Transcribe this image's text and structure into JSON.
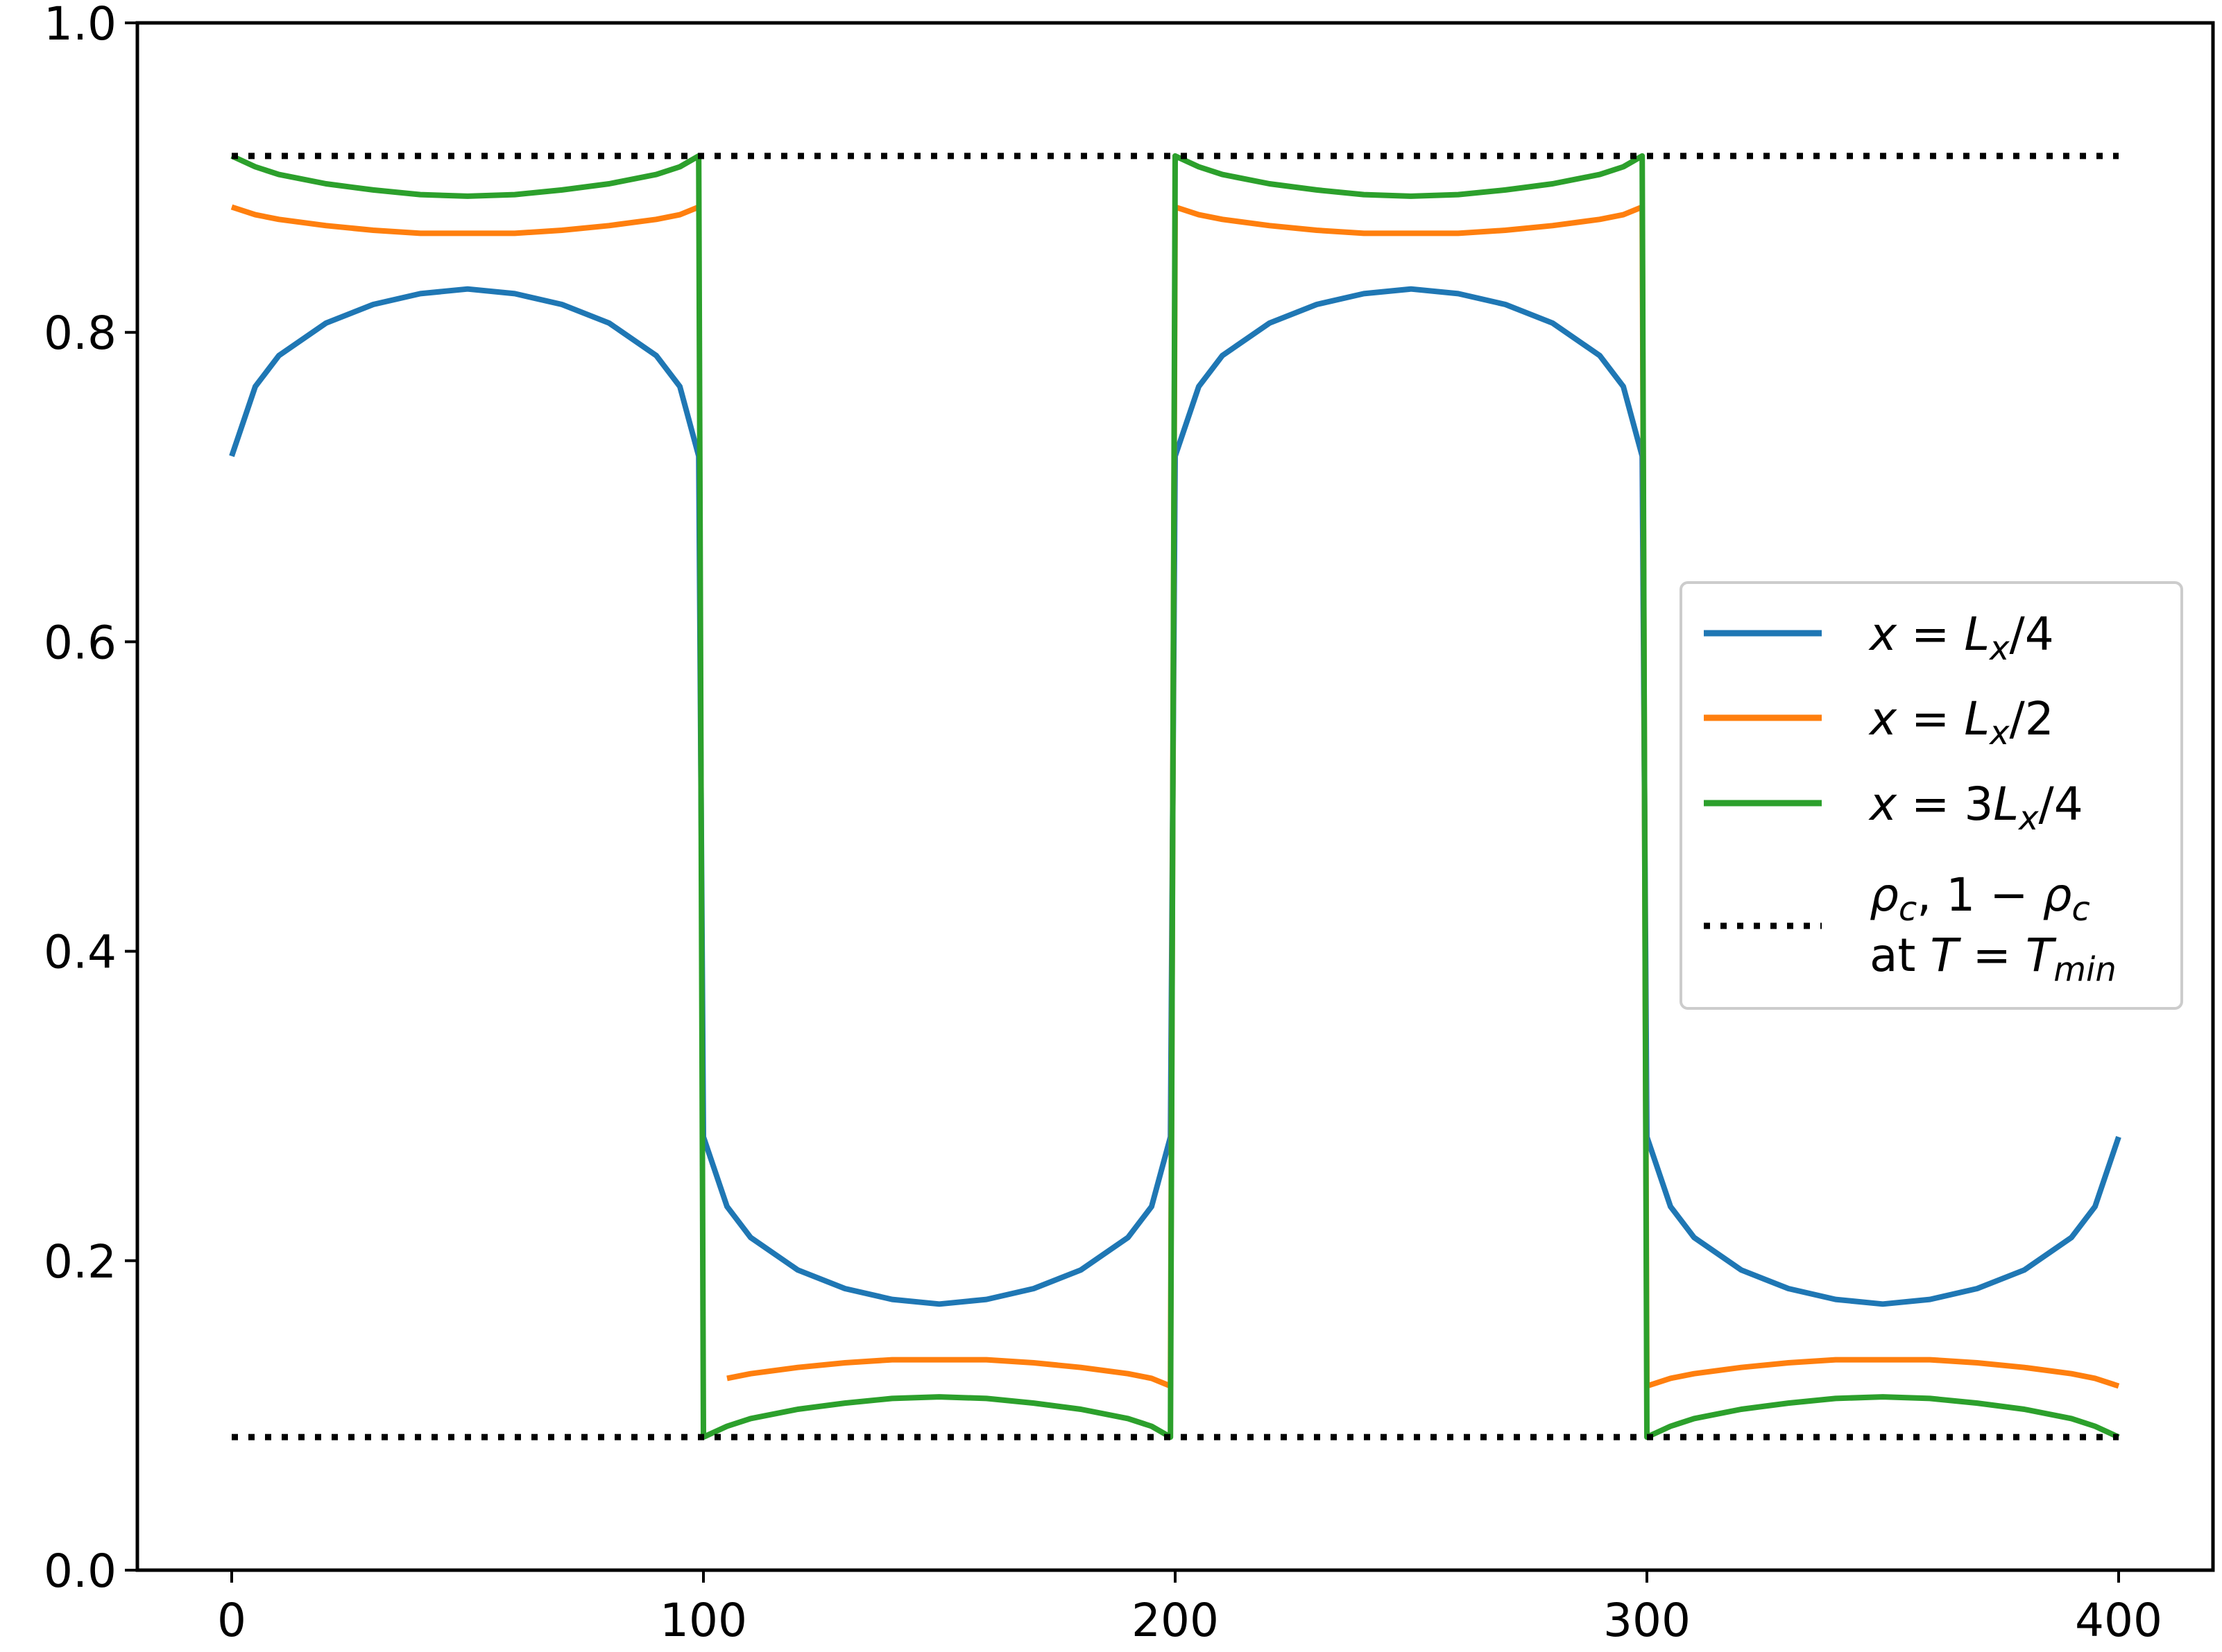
{
  "chart_data": {
    "type": "line",
    "title": "",
    "xlabel": "",
    "ylabel": "",
    "xlim": [
      -20,
      420
    ],
    "ylim": [
      0.0,
      1.0
    ],
    "grid": false,
    "legend_position": "center-right",
    "x_ticks": [
      "0",
      "100",
      "200",
      "300",
      "400"
    ],
    "y_ticks": [
      "0.0",
      "0.2",
      "0.4",
      "0.6",
      "0.8",
      "1.0"
    ],
    "x": [
      0,
      5,
      10,
      20,
      30,
      40,
      50,
      60,
      70,
      80,
      90,
      95,
      99,
      100,
      105,
      110,
      120,
      130,
      140,
      150,
      160,
      170,
      180,
      190,
      195,
      199,
      200,
      205,
      210,
      220,
      230,
      240,
      250,
      260,
      270,
      280,
      290,
      295,
      299,
      300,
      305,
      310,
      320,
      330,
      340,
      350,
      360,
      370,
      380,
      390,
      395,
      400
    ],
    "series": [
      {
        "name": "x = Lx/4",
        "color": "#1f77b4",
        "values": [
          0.72,
          0.765,
          0.785,
          0.806,
          0.818,
          0.825,
          0.828,
          0.825,
          0.818,
          0.806,
          0.785,
          0.765,
          0.72,
          0.28,
          0.235,
          0.215,
          0.194,
          0.182,
          0.175,
          0.172,
          0.175,
          0.182,
          0.194,
          0.215,
          0.235,
          0.28,
          0.72,
          0.765,
          0.785,
          0.806,
          0.818,
          0.825,
          0.828,
          0.825,
          0.818,
          0.806,
          0.785,
          0.765,
          0.72,
          0.28,
          0.235,
          0.215,
          0.194,
          0.182,
          0.175,
          0.172,
          0.175,
          0.182,
          0.194,
          0.215,
          0.235,
          0.28
        ]
      },
      {
        "name": "x = Lx/2",
        "color": "#ff7f0e",
        "values": [
          0.881,
          0.876,
          0.873,
          0.869,
          0.866,
          0.864,
          0.864,
          0.864,
          0.866,
          0.869,
          0.873,
          0.876,
          0.881,
          null,
          0.124,
          0.127,
          0.131,
          0.134,
          0.136,
          0.136,
          0.136,
          0.134,
          0.131,
          0.127,
          0.124,
          0.119,
          0.881,
          0.876,
          0.873,
          0.869,
          0.866,
          0.864,
          0.864,
          0.864,
          0.866,
          0.869,
          0.873,
          0.876,
          0.881,
          0.119,
          0.124,
          0.127,
          0.131,
          0.134,
          0.136,
          0.136,
          0.136,
          0.134,
          0.131,
          0.127,
          0.124,
          0.119
        ]
      },
      {
        "name": "x = 3Lx/4",
        "color": "#2ca02c",
        "values": [
          0.914,
          0.907,
          0.902,
          0.896,
          0.892,
          0.889,
          0.888,
          0.889,
          0.892,
          0.896,
          0.902,
          0.907,
          0.914,
          0.086,
          0.093,
          0.098,
          0.104,
          0.108,
          0.111,
          0.112,
          0.111,
          0.108,
          0.104,
          0.098,
          0.093,
          0.086,
          0.914,
          0.907,
          0.902,
          0.896,
          0.892,
          0.889,
          0.888,
          0.889,
          0.892,
          0.896,
          0.902,
          0.907,
          0.914,
          0.086,
          0.093,
          0.098,
          0.104,
          0.108,
          0.111,
          0.112,
          0.111,
          0.108,
          0.104,
          0.098,
          0.093,
          0.086
        ]
      }
    ],
    "reference_lines": {
      "name": "ρc, 1 − ρc at T = Tmin",
      "color": "#000000",
      "style": "dotted",
      "x_range": [
        0,
        400
      ],
      "values": [
        0.914,
        0.086
      ]
    }
  },
  "legend": {
    "items": [
      {
        "pre": "x",
        "mid": " = ",
        "var": "L",
        "sub": "x",
        "post": "/4",
        "color": "#1f77b4",
        "style": "solid"
      },
      {
        "pre": "x",
        "mid": " = ",
        "var": "L",
        "sub": "x",
        "post": "/2",
        "color": "#ff7f0e",
        "style": "solid"
      },
      {
        "pre": "x",
        "mid": " = 3",
        "var": "L",
        "sub": "x",
        "post": "/4",
        "color": "#2ca02c",
        "style": "solid"
      }
    ],
    "ref_line1": {
      "rho": "ρ",
      "sub": "c",
      "mid": ", 1 − ",
      "rho2": "ρ",
      "sub2": "c"
    },
    "ref_line2": {
      "at": "at ",
      "T": "T",
      "eq": " = ",
      "T2": "T",
      "sub": "min"
    }
  }
}
